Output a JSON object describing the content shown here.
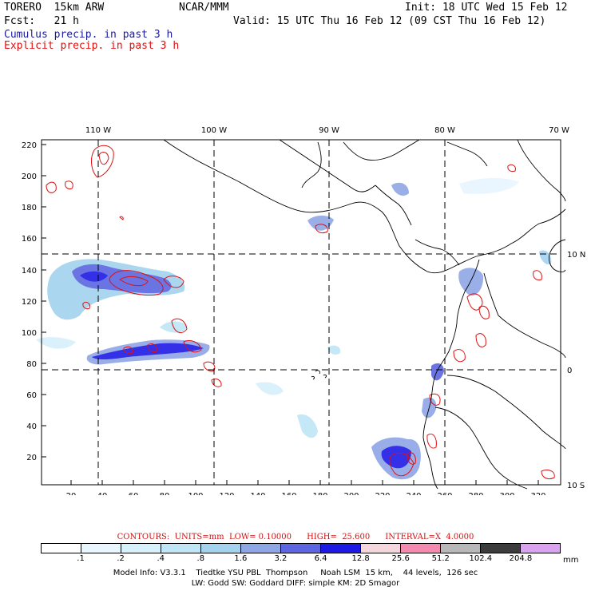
{
  "header": {
    "model": "TORERO  15km ARW",
    "org": "NCAR/MMM",
    "init": "Init: 18 UTC Wed 15 Feb 12",
    "fcst": "Fcst:   21 h",
    "valid": "Valid: 15 UTC Thu 16 Feb 12 (09 CST Thu 16 Feb 12)",
    "cumulus": "Cumulus precip. in past 3 h",
    "explicit": "Explicit precip. in past 3 h"
  },
  "axes": {
    "top_lon": [
      "110 W",
      "100 W",
      "90 W",
      "80 W",
      "70 W"
    ],
    "right_lat": [
      "10 N",
      "0",
      "10 S"
    ],
    "left_y": [
      "220",
      "200",
      "180",
      "160",
      "140",
      "120",
      "100",
      "80",
      "60",
      "40",
      "20"
    ],
    "bottom_x": [
      "20",
      "40",
      "60",
      "80",
      "100",
      "120",
      "140",
      "160",
      "180",
      "200",
      "220",
      "240",
      "260",
      "280",
      "300",
      "320"
    ]
  },
  "contours": "CONTOURS:  UNITS=mm  LOW= 0.10000      HIGH=  25.600      INTERVAL=X  4.0000",
  "legend": {
    "colors": [
      "#ffffff",
      "#e8f6ff",
      "#d6f0fc",
      "#bfe6f7",
      "#a3d2ef",
      "#8fa6e6",
      "#5b66e0",
      "#1e1ae6",
      "#f6d6dd",
      "#f58ab0",
      "#b8b8b8",
      "#3c3c3c",
      "#d9a3ef"
    ],
    "labels": [
      ".1",
      ".2",
      ".4",
      ".8",
      "1.6",
      "3.2",
      "6.4",
      "12.8",
      "25.6",
      "51.2",
      "102.4",
      "204.8"
    ],
    "unit": "mm"
  },
  "model_info": {
    "line1": "Model Info: V3.3.1    Tiedtke YSU PBL  Thompson     Noah LSM  15 km,    44 levels,  126 sec",
    "line2": "LW: Godd SW: Goddard DIFF: simple KM: 2D Smagor"
  }
}
